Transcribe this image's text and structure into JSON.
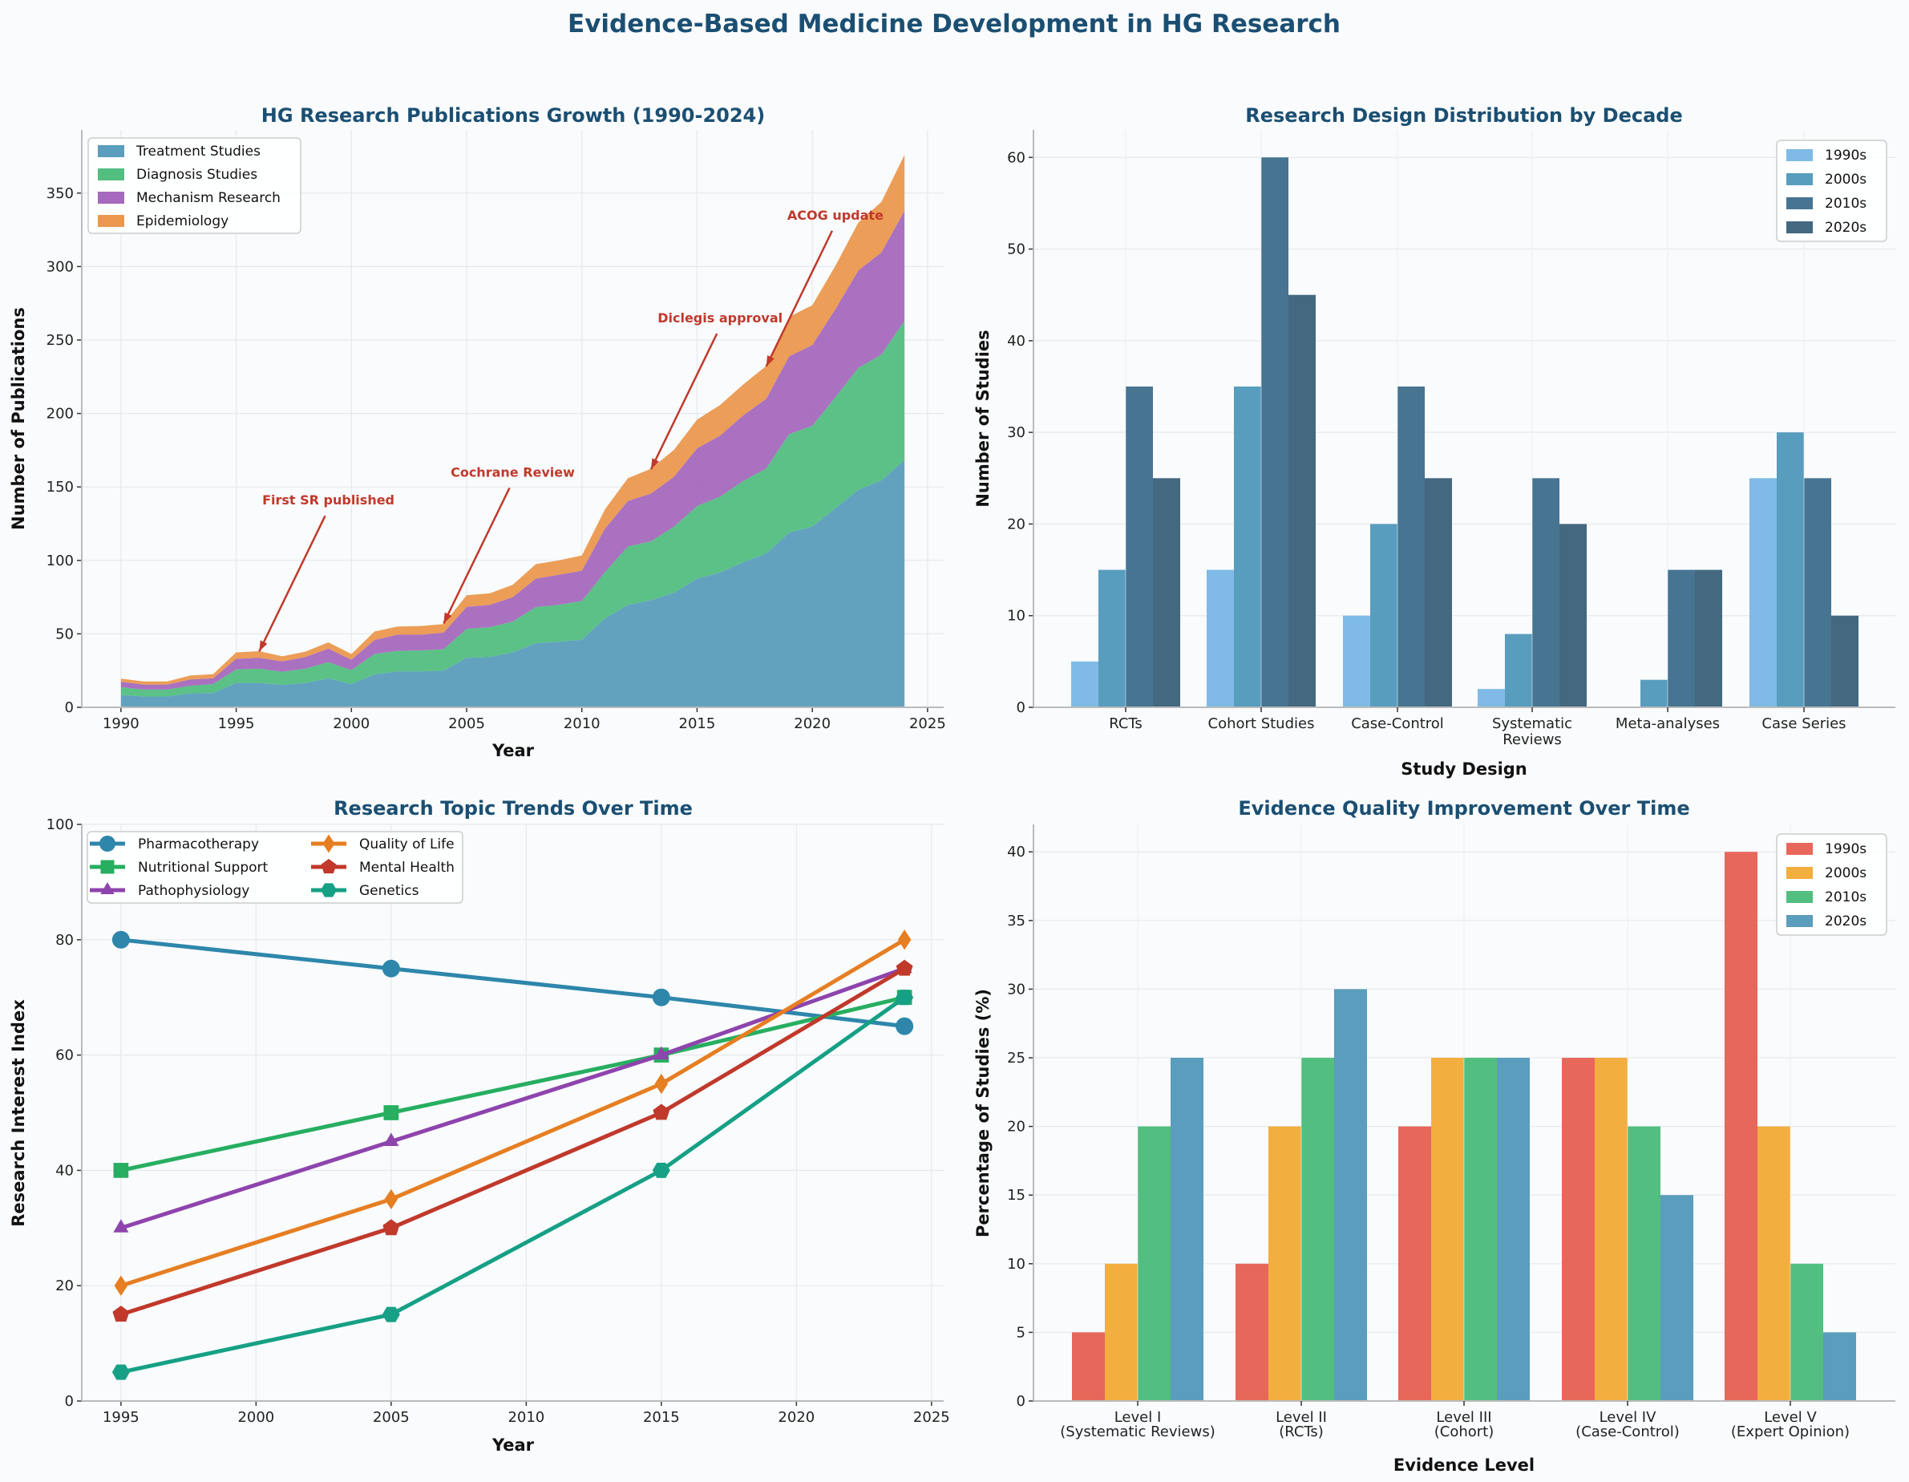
{
  "title": "Evidence-Based Medicine Development in HG Research",
  "chart_data": [
    {
      "type": "area",
      "stacked": true,
      "title": "HG Research Publications Growth (1990-2024)",
      "xlabel": "Year",
      "ylabel": "Number of Publications",
      "xlim": [
        1988.3,
        2025.7
      ],
      "ylim": [
        0,
        393
      ],
      "xticks": [
        1990,
        1995,
        2000,
        2005,
        2010,
        2015,
        2020,
        2025
      ],
      "yticks": [
        0,
        50,
        100,
        150,
        200,
        250,
        300,
        350
      ],
      "grid": true,
      "legend": "top-left",
      "x": [
        1990,
        1991,
        1992,
        1993,
        1994,
        1995,
        1996,
        1997,
        1998,
        1999,
        2000,
        2001,
        2002,
        2003,
        2004,
        2005,
        2006,
        2007,
        2008,
        2009,
        2010,
        2011,
        2012,
        2013,
        2014,
        2015,
        2016,
        2017,
        2018,
        2019,
        2020,
        2021,
        2022,
        2023,
        2024
      ],
      "series": [
        {
          "name": "Treatment Studies",
          "color": "#5a9dbc",
          "values": [
            8.4,
            7.4,
            7.4,
            9.5,
            9.7,
            16.6,
            16.6,
            15.3,
            16.6,
            19.7,
            15.8,
            22.4,
            24.5,
            24.5,
            25,
            33.7,
            34.2,
            37.4,
            43.7,
            44.7,
            46,
            60.5,
            69.7,
            72.9,
            78,
            87.6,
            91.8,
            98.7,
            104.7,
            119,
            123,
            135.5,
            148,
            154.5,
            168.4
          ]
        },
        {
          "name": "Diagnosis Studies",
          "color": "#52be80",
          "values": [
            5.3,
            4.7,
            4.7,
            5.2,
            6.1,
            9.2,
            9.7,
            8.9,
            9.7,
            11.1,
            9.5,
            13.9,
            13.9,
            14.2,
            14.5,
            19.7,
            20.3,
            21,
            24.5,
            25,
            26.4,
            31.5,
            39.8,
            40.1,
            45,
            49.4,
            51.6,
            55.3,
            57.9,
            67,
            68.6,
            75.5,
            83,
            85.5,
            94.6
          ]
        },
        {
          "name": "Mechanism Research",
          "color": "#a569bd",
          "values": [
            3.7,
            3.4,
            3.4,
            4.3,
            3.9,
            7.2,
            7.4,
            7.1,
            7.9,
            9.2,
            7.1,
            9.5,
            11.1,
            10.8,
            11.3,
            15,
            15.2,
            16.6,
            19.4,
            20.6,
            20.6,
            29.6,
            31,
            32.5,
            34,
            39.3,
            41.6,
            44.7,
            47.4,
            53,
            55,
            60,
            66.4,
            69.7,
            75
          ]
        },
        {
          "name": "Epidemiology",
          "color": "#eb984e",
          "values": [
            2.1,
            2.1,
            2.1,
            2.6,
            2.9,
            4.4,
            4.5,
            3.4,
            3.7,
            4.2,
            3.9,
            5.8,
            5.5,
            5.8,
            5.8,
            7.9,
            7.9,
            8.4,
            9.8,
            9.7,
            10.4,
            13.1,
            15.5,
            16.9,
            18.3,
            19.5,
            20.8,
            21,
            22.4,
            26.8,
            27.1,
            29.5,
            32.6,
            34.3,
            38
          ]
        }
      ],
      "annotations": [
        {
          "label": "First SR published",
          "x": 1996,
          "y": 38
        },
        {
          "label": "Cochrane Review",
          "x": 2004,
          "y": 57
        },
        {
          "label": "Diclegis approval",
          "x": 2013,
          "y": 162
        },
        {
          "label": "ACOG update",
          "x": 2018,
          "y": 232
        }
      ],
      "annotation_color": "#c0392b"
    },
    {
      "type": "bar",
      "title": "Research Design Distribution by Decade",
      "xlabel": "Study Design",
      "ylabel": "Number of Studies",
      "ylim": [
        0,
        63
      ],
      "yticks": [
        0,
        10,
        20,
        30,
        40,
        50,
        60
      ],
      "grid": true,
      "legend": "top-right",
      "categories": [
        "RCTs",
        "Cohort Studies",
        "Case-Control",
        "Systematic\nReviews",
        "Meta-analyses",
        "Case Series"
      ],
      "series": [
        {
          "name": "1990s",
          "color": "#7fbbe6",
          "values": [
            5,
            15,
            10,
            2,
            0,
            25
          ]
        },
        {
          "name": "2000s",
          "color": "#589dbd",
          "values": [
            15,
            35,
            20,
            8,
            3,
            30
          ]
        },
        {
          "name": "2010s",
          "color": "#467491",
          "values": [
            35,
            60,
            35,
            25,
            15,
            25
          ]
        },
        {
          "name": "2020s",
          "color": "#44687f",
          "values": [
            25,
            45,
            25,
            20,
            15,
            10
          ]
        }
      ]
    },
    {
      "type": "line",
      "title": "Research Topic Trends Over Time",
      "xlabel": "Year",
      "ylabel": "Research Interest Index",
      "xlim": [
        1993.55,
        2025.45
      ],
      "ylim": [
        0,
        100
      ],
      "xticks": [
        1995,
        2000,
        2005,
        2010,
        2015,
        2020,
        2025
      ],
      "yticks": [
        0,
        20,
        40,
        60,
        80,
        100
      ],
      "grid": true,
      "legend": "top-left",
      "x": [
        1995,
        2005,
        2015,
        2024
      ],
      "series": [
        {
          "name": "Pharmacotherapy",
          "color": "#2e86ab",
          "marker": "circle",
          "values": [
            80,
            75,
            70,
            65
          ]
        },
        {
          "name": "Nutritional Support",
          "color": "#27ae60",
          "marker": "square",
          "values": [
            40,
            50,
            60,
            70
          ]
        },
        {
          "name": "Pathophysiology",
          "color": "#8e44ad",
          "marker": "triangle",
          "values": [
            30,
            45,
            60,
            75
          ]
        },
        {
          "name": "Quality of Life",
          "color": "#e67e22",
          "marker": "diamond",
          "values": [
            20,
            35,
            55,
            80
          ]
        },
        {
          "name": "Mental Health",
          "color": "#c0392b",
          "marker": "pentagon",
          "values": [
            15,
            30,
            50,
            75
          ]
        },
        {
          "name": "Genetics",
          "color": "#16a085",
          "marker": "hexagon",
          "values": [
            5,
            15,
            40,
            70
          ]
        }
      ]
    },
    {
      "type": "bar",
      "title": "Evidence Quality Improvement Over Time",
      "xlabel": "Evidence Level",
      "ylabel": "Percentage of Studies (%)",
      "ylim": [
        0,
        42
      ],
      "yticks": [
        0,
        5,
        10,
        15,
        20,
        25,
        30,
        35,
        40
      ],
      "grid": true,
      "legend": "top-right",
      "categories": [
        "Level I\n(Systematic Reviews)",
        "Level II\n(RCTs)",
        "Level III\n(Cohort)",
        "Level IV\n(Case-Control)",
        "Level V\n(Expert Opinion)"
      ],
      "series": [
        {
          "name": "1990s",
          "color": "#e8675b",
          "values": [
            5,
            10,
            20,
            25,
            40
          ]
        },
        {
          "name": "2000s",
          "color": "#f2ae3f",
          "values": [
            10,
            20,
            25,
            25,
            20
          ]
        },
        {
          "name": "2010s",
          "color": "#52be80",
          "values": [
            20,
            25,
            25,
            20,
            10
          ]
        },
        {
          "name": "2020s",
          "color": "#5a9dbc",
          "values": [
            25,
            30,
            25,
            15,
            5
          ]
        }
      ]
    }
  ]
}
